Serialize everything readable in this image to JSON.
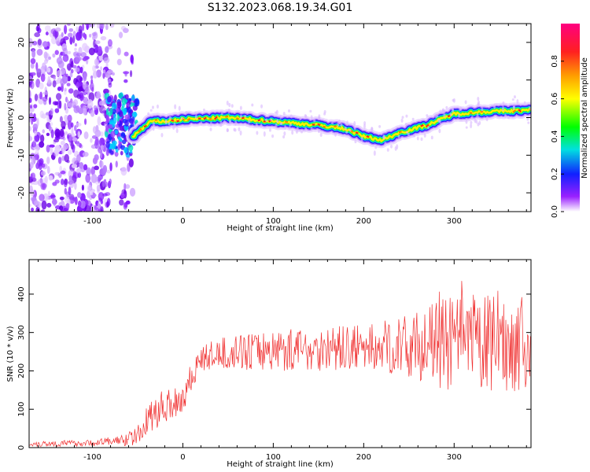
{
  "title": "S132.2023.068.19.34.G01",
  "colors": {
    "line": "#f03030",
    "axis": "#000000",
    "background": "#ffffff"
  },
  "chart_data": [
    {
      "type": "heatmap",
      "name": "spectrogram",
      "xlabel": "Height of straight line (km)",
      "ylabel": "Frequency (Hz)",
      "xlim": [
        -170,
        385
      ],
      "ylim": [
        -25,
        25
      ],
      "xticks": [
        -100,
        0,
        100,
        200,
        300
      ],
      "yticks": [
        -20,
        -10,
        0,
        10,
        20
      ],
      "colorbar": {
        "label": "Normalized spectral amplitude",
        "range": [
          0.0,
          1.0
        ],
        "ticks": [
          0.0,
          0.2,
          0.4,
          0.6,
          0.8
        ],
        "colormap": [
          "#ffffff",
          "#9a20ff",
          "#1020ff",
          "#00e0e0",
          "#00ff00",
          "#ffff00",
          "#ffa000",
          "#ff2020",
          "#ff0080"
        ]
      },
      "ridge": {
        "x": [
          -55,
          -45,
          -35,
          -20,
          0,
          50,
          100,
          150,
          180,
          200,
          220,
          240,
          270,
          290,
          300,
          330,
          385
        ],
        "y": [
          -5,
          -3,
          -1,
          -1,
          -0.5,
          0,
          -1,
          -2,
          -3,
          -5,
          -6,
          -4,
          -2,
          0,
          1,
          1.5,
          2
        ]
      },
      "noise_region": {
        "x": [
          -170,
          -80
        ],
        "y": [
          -25,
          25
        ]
      }
    },
    {
      "type": "line",
      "name": "snr",
      "xlabel": "Height of straight line (km)",
      "ylabel": "SNR (10 * v/v)",
      "xlim": [
        -170,
        385
      ],
      "ylim": [
        0,
        490
      ],
      "xticks": [
        -100,
        0,
        100,
        200,
        300
      ],
      "yticks": [
        0,
        100,
        200,
        300,
        400
      ],
      "trend": {
        "x": [
          -170,
          -100,
          -65,
          -50,
          -40,
          -20,
          0,
          10,
          20,
          40,
          100,
          200,
          250,
          280,
          300,
          340,
          385
        ],
        "mean": [
          10,
          12,
          20,
          30,
          70,
          110,
          130,
          190,
          230,
          245,
          255,
          260,
          265,
          270,
          270,
          270,
          270
        ],
        "spread": [
          8,
          8,
          15,
          25,
          40,
          45,
          50,
          40,
          35,
          40,
          55,
          60,
          80,
          110,
          130,
          130,
          120
        ]
      }
    }
  ]
}
